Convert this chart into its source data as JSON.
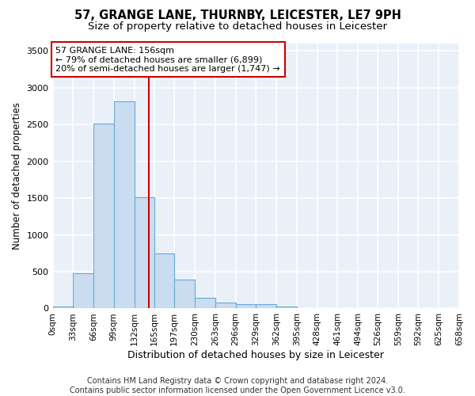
{
  "title": "57, GRANGE LANE, THURNBY, LEICESTER, LE7 9PH",
  "subtitle": "Size of property relative to detached houses in Leicester",
  "xlabel": "Distribution of detached houses by size in Leicester",
  "ylabel": "Number of detached properties",
  "bar_color": "#c9dcf0",
  "bar_edge_color": "#6aaad4",
  "background_color": "#eaf0f8",
  "grid_color": "#ffffff",
  "bin_edges": [
    0,
    33,
    66,
    99,
    132,
    165,
    197,
    230,
    263,
    296,
    329,
    362,
    395,
    428,
    461,
    494,
    526,
    559,
    592,
    625,
    658
  ],
  "bar_heights": [
    28,
    480,
    2510,
    2810,
    1510,
    750,
    390,
    140,
    75,
    55,
    55,
    30,
    0,
    0,
    0,
    0,
    0,
    0,
    0,
    0
  ],
  "tick_labels": [
    "0sqm",
    "33sqm",
    "66sqm",
    "99sqm",
    "132sqm",
    "165sqm",
    "197sqm",
    "230sqm",
    "263sqm",
    "296sqm",
    "329sqm",
    "362sqm",
    "395sqm",
    "428sqm",
    "461sqm",
    "494sqm",
    "526sqm",
    "559sqm",
    "592sqm",
    "625sqm",
    "658sqm"
  ],
  "ylim": [
    0,
    3600
  ],
  "yticks": [
    0,
    500,
    1000,
    1500,
    2000,
    2500,
    3000,
    3500
  ],
  "property_size": 156,
  "vline_color": "#cc0000",
  "annotation_text": "57 GRANGE LANE: 156sqm\n← 79% of detached houses are smaller (6,899)\n20% of semi-detached houses are larger (1,747) →",
  "annotation_box_color": "#ffffff",
  "annotation_box_edge": "#cc0000",
  "footer_text": "Contains HM Land Registry data © Crown copyright and database right 2024.\nContains public sector information licensed under the Open Government Licence v3.0.",
  "title_fontsize": 10.5,
  "subtitle_fontsize": 9.5,
  "annotation_fontsize": 8,
  "footer_fontsize": 7,
  "xlabel_fontsize": 9,
  "ylabel_fontsize": 8.5,
  "tick_fontsize": 7.5,
  "ytick_fontsize": 8
}
